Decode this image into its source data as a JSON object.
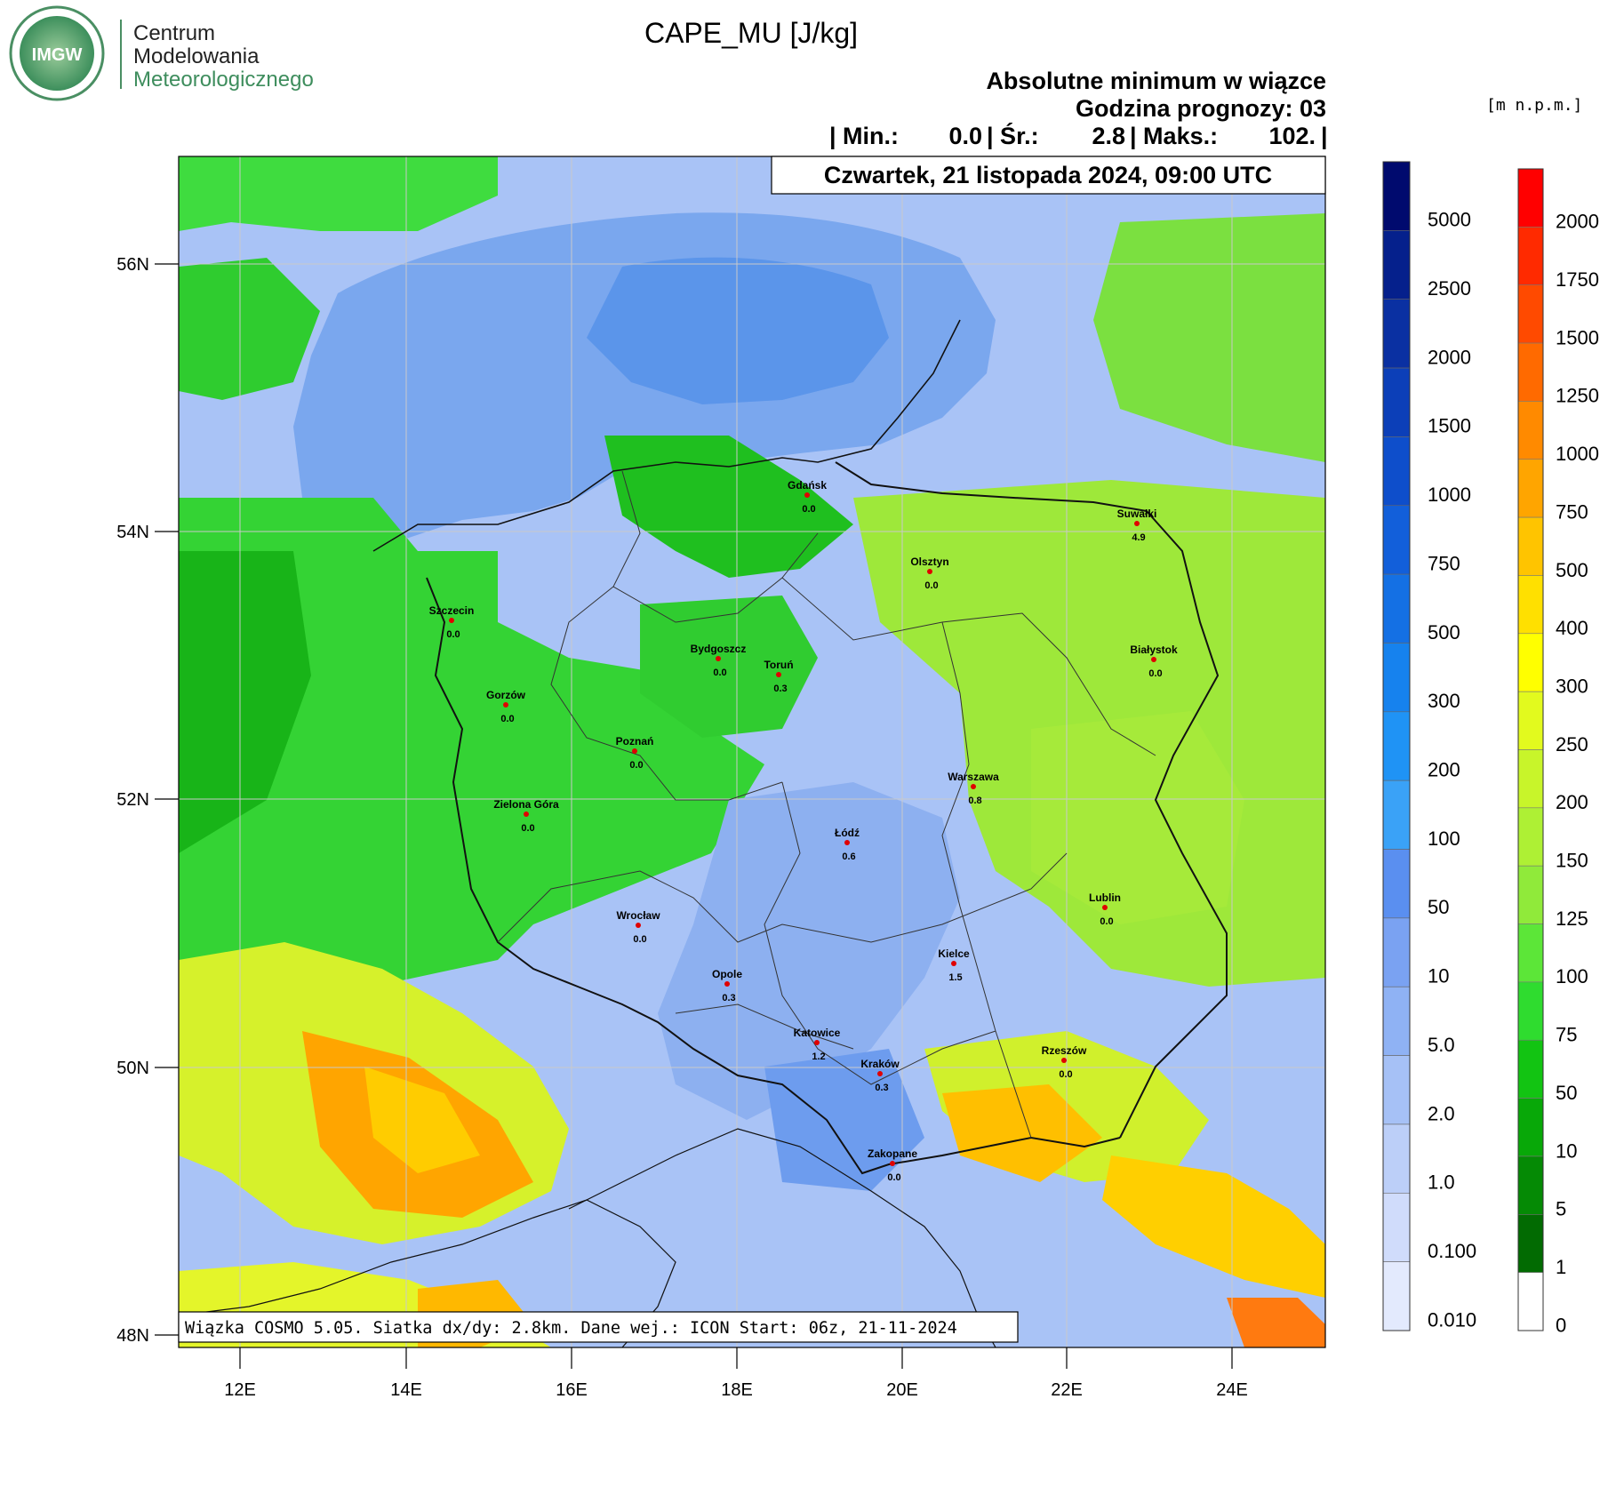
{
  "logo": {
    "badge_text": "IMGW",
    "line1": "Centrum",
    "line2": "Modelowania",
    "line3": "Meteorologicznego"
  },
  "title": "CAPE_MU [J/kg]",
  "subtitle": {
    "line1": "Absolutne minimum w wiązce",
    "line2": "Godzina prognozy: 03",
    "stats": {
      "min_label": "| Min.:",
      "min_value": "0.0",
      "avg_label": "| Śr.:",
      "avg_value": "2.8",
      "max_label": "| Maks.:",
      "max_value": "102.",
      "end": "|"
    }
  },
  "date_box": "Czwartek, 21 listopada 2024, 09:00 UTC",
  "footer_box": "Wiązka COSMO 5.05. Siatka dx/dy: 2.8km. Dane wej.: ICON Start: 06z, 21-11-2024",
  "lat_labels": [
    "56N",
    "54N",
    "52N",
    "50N",
    "48N"
  ],
  "lon_labels": [
    "12E",
    "14E",
    "16E",
    "18E",
    "20E",
    "22E",
    "24E"
  ],
  "cities": [
    {
      "name": "Gdańsk",
      "value": "0.0"
    },
    {
      "name": "Suwałki",
      "value": "4.9"
    },
    {
      "name": "Olsztyn",
      "value": "0.0"
    },
    {
      "name": "Szczecin",
      "value": "0.0"
    },
    {
      "name": "Bydgoszcz",
      "value": "0.0"
    },
    {
      "name": "Toruń",
      "value": "0.3"
    },
    {
      "name": "Białystok",
      "value": "0.0"
    },
    {
      "name": "Gorzów",
      "value": "0.0"
    },
    {
      "name": "Poznań",
      "value": "0.0"
    },
    {
      "name": "Warszawa",
      "value": "0.8"
    },
    {
      "name": "Zielona Góra",
      "value": "0.0"
    },
    {
      "name": "Łódź",
      "value": "0.6"
    },
    {
      "name": "Lublin",
      "value": "0.0"
    },
    {
      "name": "Wrocław",
      "value": "0.0"
    },
    {
      "name": "Kielce",
      "value": "1.5"
    },
    {
      "name": "Opole",
      "value": "0.3"
    },
    {
      "name": "Katowice",
      "value": "1.2"
    },
    {
      "name": "Kraków",
      "value": "0.3"
    },
    {
      "name": "Rzeszów",
      "value": "0.0"
    },
    {
      "name": "Zakopane",
      "value": "0.0"
    }
  ],
  "blue_scale": {
    "labels": [
      "5000",
      "2500",
      "2000",
      "1500",
      "1000",
      "750",
      "500",
      "300",
      "200",
      "100",
      "50",
      "10",
      "5.0",
      "2.0",
      "1.0",
      "0.100",
      "0.010"
    ],
    "colors": [
      "#000a6e",
      "#05208c",
      "#0a30a2",
      "#0c3fb8",
      "#0e4ecb",
      "#125fda",
      "#1470e4",
      "#1682ee",
      "#1f93f5",
      "#3aa2f7",
      "#5a8ff0",
      "#7aa2f2",
      "#8fb2f4",
      "#a6c1f6",
      "#bccff8",
      "#d0dcfb",
      "#e3eafd"
    ]
  },
  "green_scale": {
    "unit": "[m  n.p.m.]",
    "labels": [
      "2000",
      "1750",
      "1500",
      "1250",
      "1000",
      "750",
      "500",
      "400",
      "300",
      "250",
      "200",
      "150",
      "125",
      "100",
      "75",
      "50",
      "10",
      "5",
      "1",
      "0"
    ],
    "colors": [
      "#ff0000",
      "#ff2a00",
      "#ff4a00",
      "#ff6a00",
      "#ff8a00",
      "#ffa500",
      "#ffc400",
      "#ffe000",
      "#ffff00",
      "#e2fa1e",
      "#c8f52a",
      "#aef034",
      "#90ea3a",
      "#5ce638",
      "#2fdc2f",
      "#12c412",
      "#08a808",
      "#058a05",
      "#026b02",
      "#ffffff"
    ]
  }
}
